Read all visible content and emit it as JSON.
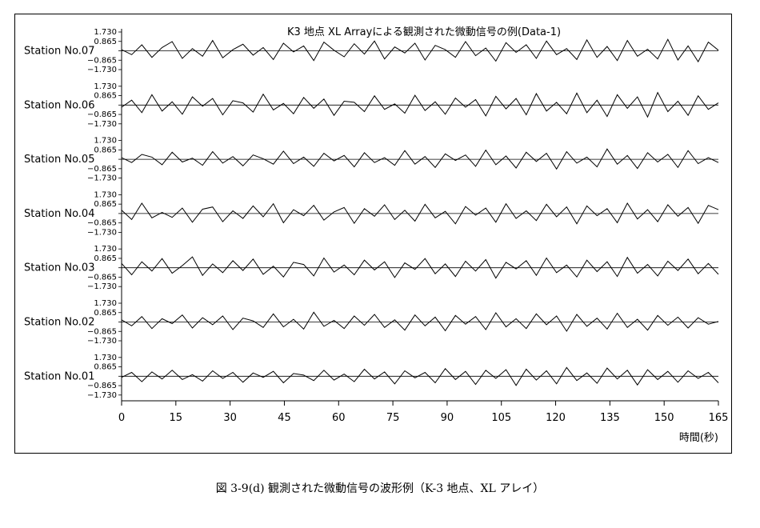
{
  "chart_data": {
    "type": "line",
    "title": "K3  地点  XL  Arrayによる観測された微動信号の例(Data-1)",
    "xlabel": "時間(秒)",
    "ylabel": "",
    "xlim": [
      0,
      165
    ],
    "xticks": [
      0,
      15,
      30,
      45,
      60,
      75,
      90,
      105,
      120,
      135,
      150,
      165
    ],
    "yticks": [
      1.73,
      0.865,
      0.0,
      -0.865,
      -1.73
    ],
    "ytick_labels": [
      "1.730",
      "0.865",
      "",
      "−0.865",
      "−1.730"
    ],
    "ylim": [
      -1.73,
      1.73
    ],
    "series": [
      {
        "name": "Station No.07",
        "values": [
          0.1,
          -0.35,
          0.55,
          -0.6,
          0.3,
          0.85,
          -0.7,
          0.2,
          -0.5,
          0.95,
          -0.65,
          0.1,
          0.6,
          -0.4,
          0.3,
          -0.8,
          0.7,
          -0.1,
          0.45,
          -0.9,
          0.8,
          0.05,
          -0.55,
          0.65,
          -0.3,
          0.9,
          -0.75,
          0.35,
          -0.2,
          0.7,
          -0.85,
          0.5,
          0.1,
          -0.6,
          0.85,
          -0.45,
          0.25,
          -0.95,
          0.75,
          -0.15,
          0.55,
          -0.7,
          0.9,
          -0.35,
          0.2,
          -0.8,
          1.0,
          -0.6,
          0.4,
          -0.9,
          0.95,
          -0.5,
          0.15,
          -0.75,
          1.05,
          -0.85,
          0.45,
          -1.0,
          0.8,
          0.05
        ]
      },
      {
        "name": "Station No.06",
        "values": [
          -0.2,
          0.45,
          -0.7,
          0.95,
          -0.55,
          0.3,
          -0.85,
          0.75,
          -0.1,
          0.6,
          -0.9,
          0.4,
          0.2,
          -0.65,
          1.0,
          -0.45,
          0.15,
          -0.8,
          0.7,
          -0.3,
          0.55,
          -0.95,
          0.35,
          0.25,
          -0.6,
          0.85,
          -0.4,
          0.1,
          -0.75,
          0.9,
          -0.5,
          0.3,
          -0.85,
          0.65,
          -0.2,
          0.5,
          -1.0,
          0.8,
          -0.35,
          0.6,
          -0.9,
          1.05,
          -0.55,
          0.25,
          -0.8,
          1.1,
          -0.7,
          0.45,
          -1.05,
          0.95,
          -0.3,
          0.75,
          -1.1,
          1.15,
          -0.6,
          0.35,
          -0.95,
          0.85,
          -0.4,
          0.2
        ]
      },
      {
        "name": "Station No.05",
        "values": [
          0.15,
          -0.3,
          0.45,
          0.2,
          -0.5,
          0.65,
          -0.25,
          0.1,
          -0.55,
          0.7,
          -0.35,
          0.25,
          -0.6,
          0.4,
          0.05,
          -0.45,
          0.75,
          -0.4,
          0.2,
          -0.65,
          0.55,
          -0.15,
          0.35,
          -0.7,
          0.6,
          -0.3,
          0.15,
          -0.55,
          0.8,
          -0.45,
          0.25,
          -0.75,
          0.5,
          -0.1,
          0.4,
          -0.65,
          0.85,
          -0.5,
          0.3,
          -0.8,
          0.65,
          -0.2,
          0.55,
          -0.9,
          0.7,
          -0.35,
          0.2,
          -0.7,
          0.95,
          -0.45,
          0.35,
          -0.85,
          0.6,
          -0.25,
          0.45,
          -0.75,
          0.8,
          -0.4,
          0.15,
          -0.3
        ]
      },
      {
        "name": "Station No.04",
        "values": [
          0.3,
          -0.55,
          0.95,
          -0.4,
          0.1,
          -0.35,
          0.5,
          -0.8,
          0.4,
          0.6,
          -0.75,
          0.25,
          -0.45,
          0.7,
          -0.3,
          0.9,
          -0.85,
          0.35,
          -0.2,
          0.75,
          -0.6,
          0.15,
          0.55,
          -0.9,
          0.45,
          -0.25,
          0.8,
          -0.55,
          0.3,
          -0.7,
          0.85,
          -0.4,
          0.2,
          -0.95,
          0.65,
          -0.15,
          0.5,
          -0.8,
          0.9,
          -0.45,
          0.25,
          -0.65,
          0.85,
          -0.3,
          0.6,
          -0.95,
          0.7,
          -0.2,
          0.45,
          -0.85,
          0.95,
          -0.5,
          0.35,
          -0.75,
          0.8,
          -0.25,
          0.55,
          -0.9,
          0.75,
          0.35
        ]
      },
      {
        "name": "Station No.03",
        "values": [
          0.4,
          -0.65,
          0.55,
          -0.3,
          0.85,
          -0.5,
          0.2,
          1.0,
          -0.7,
          0.35,
          -0.45,
          0.65,
          -0.25,
          0.8,
          -0.6,
          0.15,
          -0.85,
          0.5,
          0.3,
          -0.75,
          0.9,
          -0.4,
          0.25,
          -0.65,
          0.7,
          -0.2,
          0.55,
          -0.9,
          0.45,
          -0.15,
          0.85,
          -0.55,
          0.35,
          -0.8,
          0.6,
          -0.3,
          0.75,
          -0.95,
          0.5,
          -0.1,
          0.65,
          -0.7,
          0.9,
          -0.45,
          0.25,
          -0.85,
          0.7,
          -0.35,
          0.55,
          -0.8,
          0.95,
          -0.5,
          0.3,
          -0.75,
          0.6,
          -0.25,
          0.8,
          -0.55,
          0.4,
          -0.6
        ]
      },
      {
        "name": "Station No.02",
        "values": [
          0.2,
          -0.35,
          0.5,
          -0.6,
          0.3,
          -0.15,
          0.65,
          -0.55,
          0.4,
          -0.25,
          0.55,
          -0.7,
          0.35,
          0.1,
          -0.5,
          0.75,
          -0.45,
          0.25,
          -0.65,
          0.9,
          -0.4,
          0.15,
          -0.6,
          0.55,
          -0.3,
          0.7,
          -0.5,
          0.2,
          -0.75,
          0.65,
          -0.35,
          0.45,
          -0.8,
          0.6,
          -0.2,
          0.5,
          -0.7,
          0.85,
          -0.45,
          0.3,
          -0.6,
          0.75,
          -0.25,
          0.55,
          -0.85,
          0.7,
          -0.4,
          0.35,
          -0.65,
          0.8,
          -0.5,
          0.25,
          -0.75,
          0.6,
          -0.3,
          0.45,
          -0.55,
          0.4,
          -0.2,
          0.05
        ]
      },
      {
        "name": "Station No.01",
        "values": [
          -0.1,
          0.35,
          -0.5,
          0.4,
          -0.25,
          0.55,
          -0.3,
          0.15,
          -0.45,
          0.5,
          -0.2,
          0.35,
          -0.55,
          0.3,
          -0.1,
          0.45,
          -0.6,
          0.25,
          0.1,
          -0.4,
          0.55,
          -0.35,
          0.2,
          -0.5,
          0.65,
          -0.25,
          0.4,
          -0.7,
          0.5,
          -0.15,
          0.35,
          -0.6,
          0.7,
          -0.3,
          0.45,
          -0.75,
          0.55,
          -0.2,
          0.6,
          -0.85,
          0.65,
          -0.35,
          0.5,
          -0.7,
          0.8,
          -0.4,
          0.3,
          -0.65,
          0.75,
          -0.25,
          0.55,
          -0.8,
          0.6,
          -0.3,
          0.45,
          -0.55,
          0.5,
          -0.2,
          0.35,
          -0.6
        ]
      }
    ]
  },
  "caption": "図 3-9(d)   観測された微動信号の波形例（K-3 地点、XL アレイ）"
}
